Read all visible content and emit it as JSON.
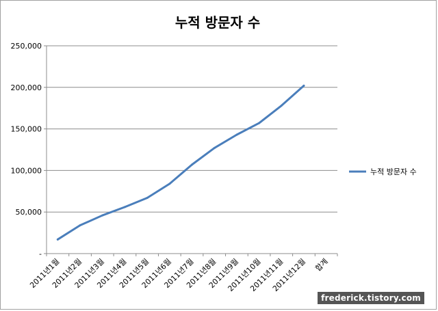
{
  "chart_data": {
    "type": "line",
    "title": "누적 방문자 수",
    "categories": [
      "2011년1월",
      "2011년2월",
      "2011년3월",
      "2011년4월",
      "2011년5월",
      "2011년6월",
      "2011년7월",
      "2011년8월",
      "2011년9월",
      "2011년10월",
      "2011년11월",
      "2011년12월",
      "합계"
    ],
    "series": [
      {
        "name": "누적 방문자 수",
        "color": "#4a7ebb",
        "values": [
          17000,
          34000,
          46000,
          56000,
          67000,
          84000,
          107000,
          127000,
          143000,
          157000,
          178000,
          202000,
          null
        ]
      }
    ],
    "ylim": [
      0,
      250000
    ],
    "yticks": [
      0,
      50000,
      100000,
      150000,
      200000,
      250000
    ],
    "ytick_labels": [
      "-",
      "50,000",
      "100,000",
      "150,000",
      "200,000",
      "250,000"
    ],
    "grid": true,
    "legend_position": "right"
  },
  "watermark": "frederick.tistory.com"
}
